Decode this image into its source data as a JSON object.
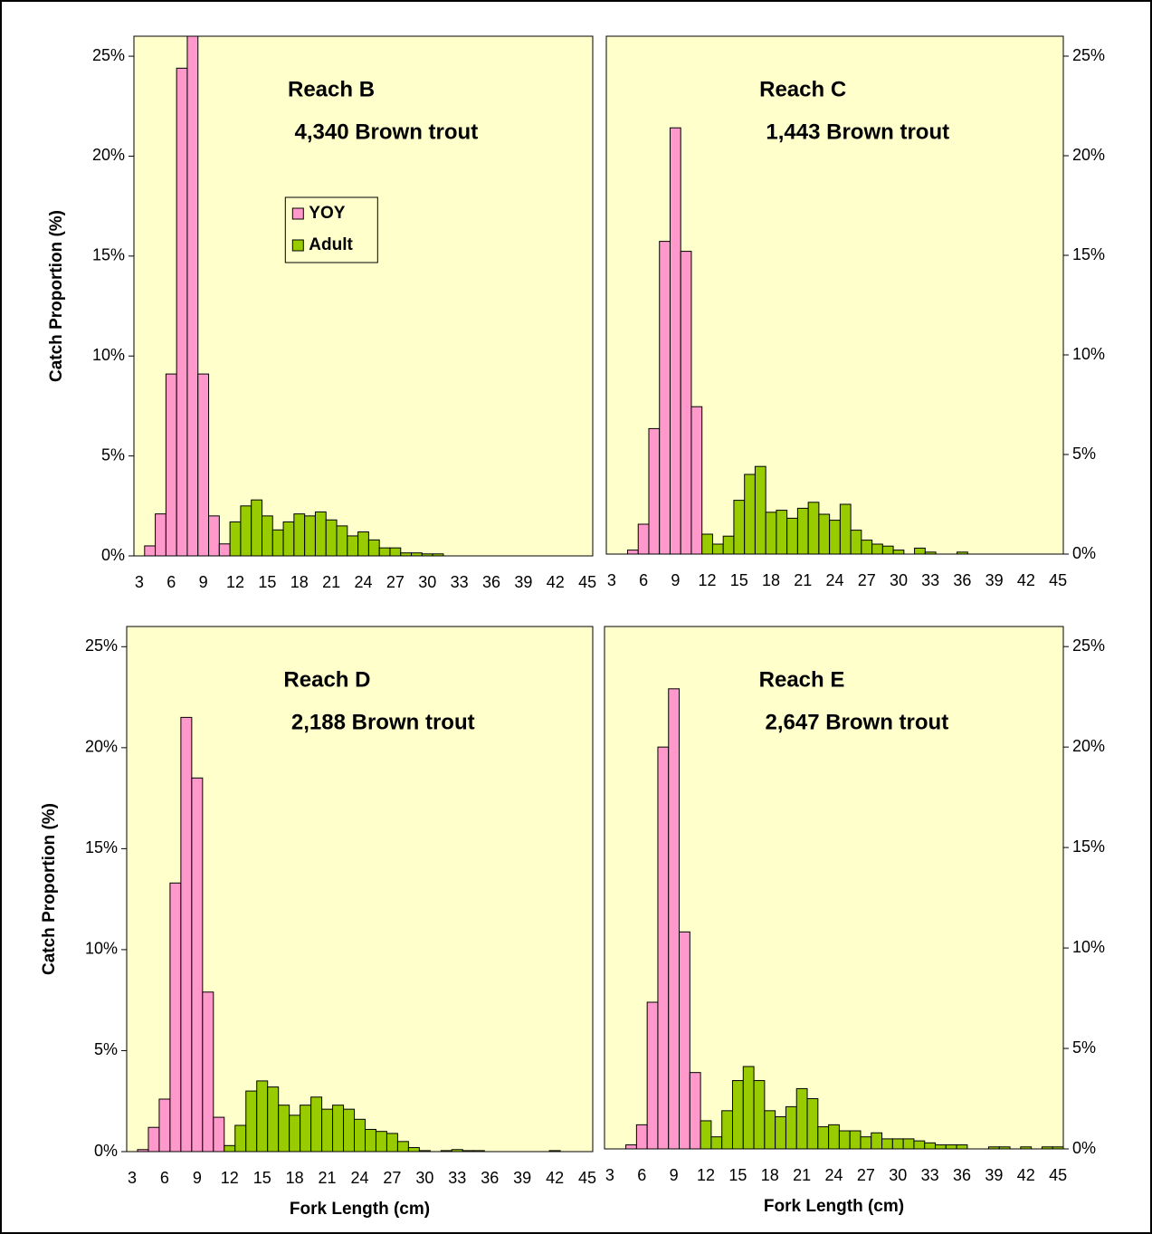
{
  "chart_data": [
    {
      "type": "bar",
      "title": "Reach B",
      "subtitle": "4,340 Brown trout",
      "ylabel": "Catch Proportion (%)",
      "yaxis_position": "left",
      "legend": "upper center",
      "categories": [
        3,
        null,
        null,
        6,
        null,
        null,
        9,
        null,
        null,
        12,
        null,
        null,
        15,
        null,
        null,
        18,
        null,
        null,
        21,
        null,
        null,
        24,
        null,
        null,
        27,
        null,
        null,
        30,
        null,
        null,
        33,
        null,
        null,
        36,
        null,
        null,
        39,
        null,
        null,
        42,
        null,
        null,
        45
      ],
      "ylim": [
        0,
        26
      ],
      "yticks": [
        {
          "value": 0,
          "label": "0%"
        },
        {
          "value": 5,
          "label": "5%"
        },
        {
          "value": 10,
          "label": "10%"
        },
        {
          "value": 15,
          "label": "15%"
        },
        {
          "value": 20,
          "label": "20%"
        },
        {
          "value": 25,
          "label": "25%"
        }
      ],
      "background": "#ffffcc",
      "series": [
        {
          "name": "YOY",
          "color": "#ff99cc",
          "values": [
            0,
            0.5,
            2.1,
            9.1,
            24.4,
            26.5,
            9.1,
            2.0,
            0.6,
            null,
            null,
            null,
            null,
            null,
            null,
            null,
            null,
            null,
            null,
            null,
            null,
            null,
            null,
            null,
            null,
            null,
            null,
            null,
            null,
            null,
            null,
            null,
            null,
            null,
            null,
            null,
            null,
            null,
            null,
            null,
            null,
            null,
            null
          ]
        },
        {
          "name": "Adult",
          "color": "#99cc00",
          "values": [
            null,
            null,
            null,
            null,
            null,
            null,
            null,
            null,
            null,
            1.7,
            2.5,
            2.8,
            2.0,
            1.3,
            1.7,
            2.1,
            2.0,
            2.2,
            1.8,
            1.5,
            1.0,
            1.2,
            0.8,
            0.4,
            0.4,
            0.15,
            0.15,
            0.1,
            0.1,
            0,
            0,
            0,
            0,
            0,
            0,
            0,
            0,
            0,
            0,
            0,
            0,
            0,
            0
          ]
        }
      ]
    },
    {
      "type": "bar",
      "title": "Reach C",
      "subtitle": "1,443 Brown trout",
      "yaxis_position": "right",
      "categories": [
        3,
        null,
        null,
        6,
        null,
        null,
        9,
        null,
        null,
        12,
        null,
        null,
        15,
        null,
        null,
        18,
        null,
        null,
        21,
        null,
        null,
        24,
        null,
        null,
        27,
        null,
        null,
        30,
        null,
        null,
        33,
        null,
        null,
        36,
        null,
        null,
        39,
        null,
        null,
        42,
        null,
        null,
        45
      ],
      "ylim": [
        0,
        26
      ],
      "yticks": [
        {
          "value": 0,
          "label": "0%"
        },
        {
          "value": 5,
          "label": "5%"
        },
        {
          "value": 10,
          "label": "10%"
        },
        {
          "value": 15,
          "label": "15%"
        },
        {
          "value": 20,
          "label": "20%"
        },
        {
          "value": 25,
          "label": "25%"
        }
      ],
      "background": "#ffffcc",
      "series": [
        {
          "name": "YOY",
          "color": "#ff99cc",
          "values": [
            0,
            0,
            0.2,
            1.5,
            6.3,
            15.7,
            21.4,
            15.2,
            7.4,
            null,
            null,
            null,
            null,
            null,
            null,
            null,
            null,
            null,
            null,
            null,
            null,
            null,
            null,
            null,
            null,
            null,
            null,
            null,
            null,
            null,
            null,
            null,
            null,
            null,
            null,
            null,
            null,
            null,
            null,
            null,
            null,
            null,
            null
          ]
        },
        {
          "name": "Adult",
          "color": "#99cc00",
          "values": [
            null,
            null,
            null,
            null,
            null,
            null,
            null,
            null,
            null,
            1.0,
            0.5,
            0.9,
            2.7,
            4.0,
            4.4,
            2.1,
            2.2,
            1.8,
            2.3,
            2.6,
            2.0,
            1.7,
            2.5,
            1.2,
            0.7,
            0.5,
            0.4,
            0.2,
            0,
            0.3,
            0.1,
            0,
            0,
            0.1,
            0,
            0,
            0,
            0,
            0,
            0,
            0,
            0,
            0
          ]
        }
      ]
    },
    {
      "type": "bar",
      "title": "Reach D",
      "subtitle": "2,188 Brown trout",
      "ylabel": "Catch Proportion (%)",
      "xlabel": "Fork Length (cm)",
      "yaxis_position": "left",
      "categories": [
        3,
        null,
        null,
        6,
        null,
        null,
        9,
        null,
        null,
        12,
        null,
        null,
        15,
        null,
        null,
        18,
        null,
        null,
        21,
        null,
        null,
        24,
        null,
        null,
        27,
        null,
        null,
        30,
        null,
        null,
        33,
        null,
        null,
        36,
        null,
        null,
        39,
        null,
        null,
        42,
        null,
        null,
        45
      ],
      "ylim": [
        0,
        26
      ],
      "yticks": [
        {
          "value": 0,
          "label": "0%"
        },
        {
          "value": 5,
          "label": "5%"
        },
        {
          "value": 10,
          "label": "10%"
        },
        {
          "value": 15,
          "label": "15%"
        },
        {
          "value": 20,
          "label": "20%"
        },
        {
          "value": 25,
          "label": "25%"
        }
      ],
      "background": "#ffffcc",
      "series": [
        {
          "name": "YOY",
          "color": "#ff99cc",
          "values": [
            0,
            0.1,
            1.2,
            2.6,
            13.3,
            21.5,
            18.5,
            7.9,
            1.7,
            null,
            null,
            null,
            null,
            null,
            null,
            null,
            null,
            null,
            null,
            null,
            null,
            null,
            null,
            null,
            null,
            null,
            null,
            null,
            null,
            null,
            null,
            null,
            null,
            null,
            null,
            null,
            null,
            null,
            null,
            null,
            null,
            null,
            null
          ]
        },
        {
          "name": "Adult",
          "color": "#99cc00",
          "values": [
            null,
            null,
            null,
            null,
            null,
            null,
            null,
            null,
            null,
            0.3,
            1.3,
            3.0,
            3.5,
            3.2,
            2.3,
            1.8,
            2.3,
            2.7,
            2.1,
            2.3,
            2.1,
            1.6,
            1.1,
            1.0,
            0.9,
            0.5,
            0.2,
            0.05,
            0,
            0.05,
            0.1,
            0.05,
            0.05,
            0,
            0,
            0,
            0,
            0,
            0,
            0.05,
            0,
            0,
            0
          ]
        }
      ]
    },
    {
      "type": "bar",
      "title": "Reach E",
      "subtitle": "2,647 Brown trout",
      "xlabel": "Fork Length (cm)",
      "yaxis_position": "right",
      "categories": [
        3,
        null,
        null,
        6,
        null,
        null,
        9,
        null,
        null,
        12,
        null,
        null,
        15,
        null,
        null,
        18,
        null,
        null,
        21,
        null,
        null,
        24,
        null,
        null,
        27,
        null,
        null,
        30,
        null,
        null,
        33,
        null,
        null,
        36,
        null,
        null,
        39,
        null,
        null,
        42,
        null,
        null,
        45
      ],
      "ylim": [
        0,
        26
      ],
      "yticks": [
        {
          "value": 0,
          "label": "0%"
        },
        {
          "value": 5,
          "label": "5%"
        },
        {
          "value": 10,
          "label": "10%"
        },
        {
          "value": 15,
          "label": "15%"
        },
        {
          "value": 20,
          "label": "20%"
        },
        {
          "value": 25,
          "label": "25%"
        }
      ],
      "background": "#ffffcc",
      "series": [
        {
          "name": "YOY",
          "color": "#ff99cc",
          "values": [
            0,
            0,
            0.2,
            1.2,
            7.3,
            20.0,
            22.9,
            10.8,
            3.8,
            null,
            null,
            null,
            null,
            null,
            null,
            null,
            null,
            null,
            null,
            null,
            null,
            null,
            null,
            null,
            null,
            null,
            null,
            null,
            null,
            null,
            null,
            null,
            null,
            null,
            null,
            null,
            null,
            null,
            null,
            null,
            null,
            null,
            null
          ]
        },
        {
          "name": "Adult",
          "color": "#99cc00",
          "values": [
            null,
            null,
            null,
            null,
            null,
            null,
            null,
            null,
            null,
            1.4,
            0.6,
            1.9,
            3.4,
            4.1,
            3.4,
            1.9,
            1.6,
            2.1,
            3.0,
            2.5,
            1.1,
            1.2,
            0.9,
            0.9,
            0.6,
            0.8,
            0.5,
            0.5,
            0.5,
            0.4,
            0.3,
            0.2,
            0.2,
            0.2,
            0,
            0,
            0.1,
            0.1,
            0,
            0.1,
            0,
            0.1,
            0.1
          ]
        }
      ]
    }
  ]
}
